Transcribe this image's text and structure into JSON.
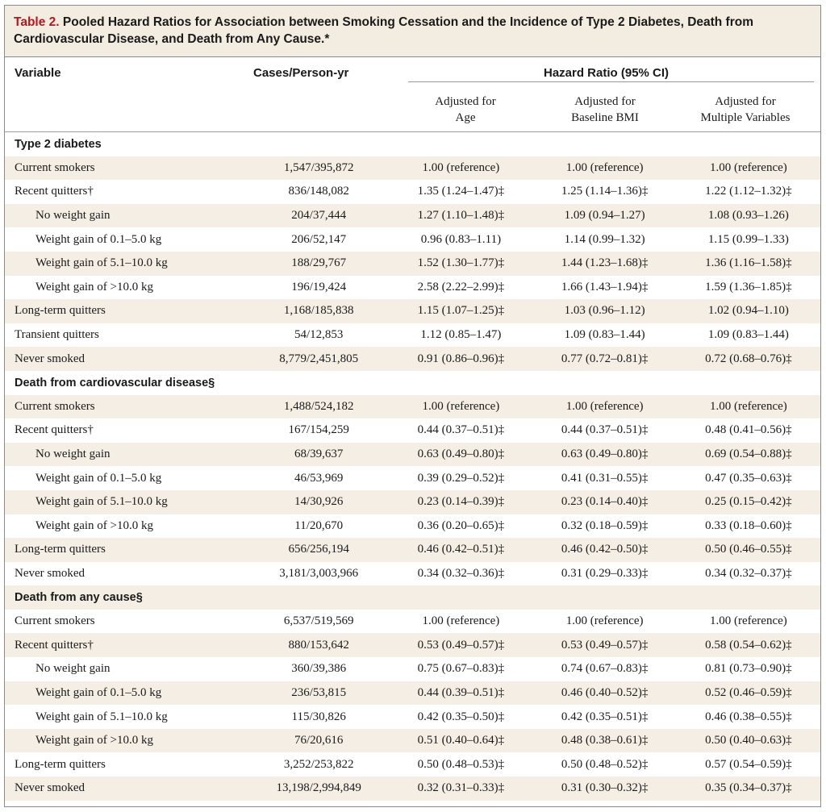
{
  "title": {
    "number": "Table 2.",
    "text": " Pooled Hazard Ratios for Association between Smoking Cessation and the Incidence of Type 2 Diabetes, Death from Cardiovascular Disease, and Death from Any Cause.*"
  },
  "header": {
    "variable": "Variable",
    "cases": "Cases/Person-yr",
    "hazard": "Hazard Ratio (95% CI)",
    "col_age_1": "Adjusted for",
    "col_age_2": "Age",
    "col_bmi_1": "Adjusted for",
    "col_bmi_2": "Baseline BMI",
    "col_multi_1": "Adjusted for",
    "col_multi_2": "Multiple Variables"
  },
  "rows": [
    {
      "label": "Type 2 diabetes",
      "section": true
    },
    {
      "label": "Current smokers",
      "cases": "1,547/395,872",
      "age": "1.00 (reference)",
      "bmi": "1.00 (reference)",
      "multi": "1.00 (reference)"
    },
    {
      "label": "Recent quitters†",
      "cases": "836/148,082",
      "age": "1.35 (1.24–1.47)‡",
      "bmi": "1.25 (1.14–1.36)‡",
      "multi": "1.22 (1.12–1.32)‡"
    },
    {
      "label": "No weight gain",
      "indent": true,
      "cases": "204/37,444",
      "age": "1.27 (1.10–1.48)‡",
      "bmi": "1.09 (0.94–1.27)",
      "multi": "1.08 (0.93–1.26)"
    },
    {
      "label": "Weight gain of 0.1–5.0 kg",
      "indent": true,
      "cases": "206/52,147",
      "age": "0.96 (0.83–1.11)",
      "bmi": "1.14 (0.99–1.32)",
      "multi": "1.15 (0.99–1.33)"
    },
    {
      "label": "Weight gain of 5.1–10.0 kg",
      "indent": true,
      "cases": "188/29,767",
      "age": "1.52 (1.30–1.77)‡",
      "bmi": "1.44 (1.23–1.68)‡",
      "multi": "1.36 (1.16–1.58)‡"
    },
    {
      "label": "Weight gain of >10.0 kg",
      "indent": true,
      "cases": "196/19,424",
      "age": "2.58 (2.22–2.99)‡",
      "bmi": "1.66 (1.43–1.94)‡",
      "multi": "1.59 (1.36–1.85)‡"
    },
    {
      "label": "Long-term quitters",
      "cases": "1,168/185,838",
      "age": "1.15 (1.07–1.25)‡",
      "bmi": "1.03 (0.96–1.12)",
      "multi": "1.02 (0.94–1.10)"
    },
    {
      "label": "Transient quitters",
      "cases": "54/12,853",
      "age": "1.12 (0.85–1.47)",
      "bmi": "1.09 (0.83–1.44)",
      "multi": "1.09 (0.83–1.44)"
    },
    {
      "label": "Never smoked",
      "cases": "8,779/2,451,805",
      "age": "0.91 (0.86–0.96)‡",
      "bmi": "0.77 (0.72–0.81)‡",
      "multi": "0.72 (0.68–0.76)‡"
    },
    {
      "label": "Death from cardiovascular disease§",
      "section": true
    },
    {
      "label": "Current smokers",
      "cases": "1,488/524,182",
      "age": "1.00 (reference)",
      "bmi": "1.00 (reference)",
      "multi": "1.00 (reference)"
    },
    {
      "label": "Recent quitters†",
      "cases": "167/154,259",
      "age": "0.44 (0.37–0.51)‡",
      "bmi": "0.44 (0.37–0.51)‡",
      "multi": "0.48 (0.41–0.56)‡"
    },
    {
      "label": "No weight gain",
      "indent": true,
      "cases": "68/39,637",
      "age": "0.63 (0.49–0.80)‡",
      "bmi": "0.63 (0.49–0.80)‡",
      "multi": "0.69 (0.54–0.88)‡"
    },
    {
      "label": "Weight gain of 0.1–5.0 kg",
      "indent": true,
      "cases": "46/53,969",
      "age": "0.39 (0.29–0.52)‡",
      "bmi": "0.41 (0.31–0.55)‡",
      "multi": "0.47 (0.35–0.63)‡"
    },
    {
      "label": "Weight gain of 5.1–10.0 kg",
      "indent": true,
      "cases": "14/30,926",
      "age": "0.23 (0.14–0.39)‡",
      "bmi": "0.23 (0.14–0.40)‡",
      "multi": "0.25 (0.15–0.42)‡"
    },
    {
      "label": "Weight gain of >10.0 kg",
      "indent": true,
      "cases": "11/20,670",
      "age": "0.36 (0.20–0.65)‡",
      "bmi": "0.32 (0.18–0.59)‡",
      "multi": "0.33 (0.18–0.60)‡"
    },
    {
      "label": "Long-term quitters",
      "cases": "656/256,194",
      "age": "0.46 (0.42–0.51)‡",
      "bmi": "0.46 (0.42–0.50)‡",
      "multi": "0.50 (0.46–0.55)‡"
    },
    {
      "label": "Never smoked",
      "cases": "3,181/3,003,966",
      "age": "0.34 (0.32–0.36)‡",
      "bmi": "0.31 (0.29–0.33)‡",
      "multi": "0.34 (0.32–0.37)‡"
    },
    {
      "label": "Death from any cause§",
      "section": true
    },
    {
      "label": "Current smokers",
      "cases": "6,537/519,569",
      "age": "1.00 (reference)",
      "bmi": "1.00 (reference)",
      "multi": "1.00 (reference)"
    },
    {
      "label": "Recent quitters†",
      "cases": "880/153,642",
      "age": "0.53 (0.49–0.57)‡",
      "bmi": "0.53 (0.49–0.57)‡",
      "multi": "0.58 (0.54–0.62)‡"
    },
    {
      "label": "No weight gain",
      "indent": true,
      "cases": "360/39,386",
      "age": "0.75 (0.67–0.83)‡",
      "bmi": "0.74 (0.67–0.83)‡",
      "multi": "0.81 (0.73–0.90)‡"
    },
    {
      "label": "Weight gain of 0.1–5.0 kg",
      "indent": true,
      "cases": "236/53,815",
      "age": "0.44 (0.39–0.51)‡",
      "bmi": "0.46 (0.40–0.52)‡",
      "multi": "0.52 (0.46–0.59)‡"
    },
    {
      "label": "Weight gain of 5.1–10.0 kg",
      "indent": true,
      "cases": "115/30,826",
      "age": "0.42 (0.35–0.50)‡",
      "bmi": "0.42 (0.35–0.51)‡",
      "multi": "0.46 (0.38–0.55)‡"
    },
    {
      "label": "Weight gain of >10.0 kg",
      "indent": true,
      "cases": "76/20,616",
      "age": "0.51 (0.40–0.64)‡",
      "bmi": "0.48 (0.38–0.61)‡",
      "multi": "0.50 (0.40–0.63)‡"
    },
    {
      "label": "Long-term quitters",
      "cases": "3,252/253,822",
      "age": "0.50 (0.48–0.53)‡",
      "bmi": "0.50 (0.48–0.52)‡",
      "multi": "0.57 (0.54–0.59)‡"
    },
    {
      "label": "Never smoked",
      "cases": "13,198/2,994,849",
      "age": "0.32 (0.31–0.33)‡",
      "bmi": "0.31 (0.30–0.32)‡",
      "multi": "0.35 (0.34–0.37)‡"
    }
  ]
}
